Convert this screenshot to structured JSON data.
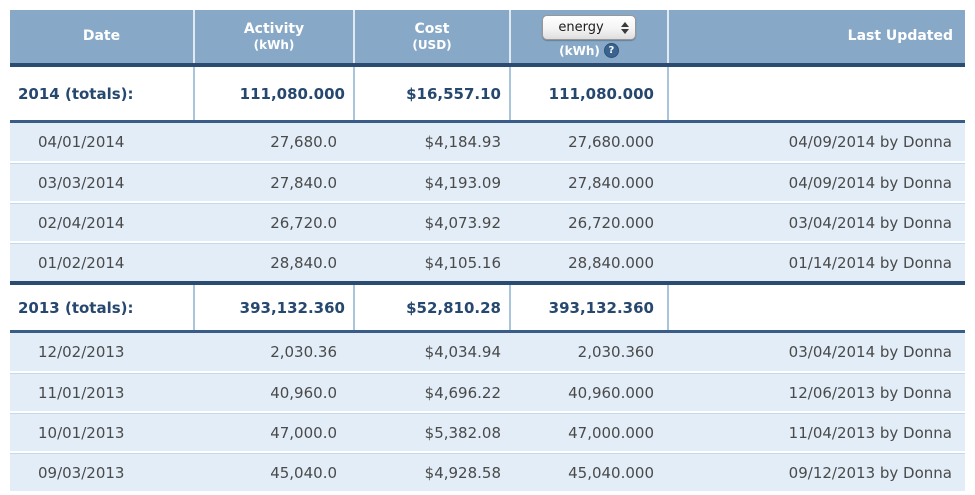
{
  "table": {
    "columns": {
      "date": {
        "label": "Date"
      },
      "activity": {
        "label": "Activity",
        "unit": "(kWh)"
      },
      "cost": {
        "label": "Cost",
        "unit": "(USD)"
      },
      "energy": {
        "select_value": "energy",
        "unit": "(kWh)",
        "help_glyph": "?"
      },
      "last_updated": {
        "label": "Last Updated"
      }
    },
    "sections": [
      {
        "total_label": "2014 (totals):",
        "total_activity": "111,080.000",
        "total_cost": "$16,557.10",
        "total_energy": "111,080.000",
        "rows": [
          {
            "date": "04/01/2014",
            "activity": "27,680.0",
            "cost": "$4,184.93",
            "energy": "27,680.000",
            "last_updated": "04/09/2014 by Donna"
          },
          {
            "date": "03/03/2014",
            "activity": "27,840.0",
            "cost": "$4,193.09",
            "energy": "27,840.000",
            "last_updated": "04/09/2014 by Donna"
          },
          {
            "date": "02/04/2014",
            "activity": "26,720.0",
            "cost": "$4,073.92",
            "energy": "26,720.000",
            "last_updated": "03/04/2014 by Donna"
          },
          {
            "date": "01/02/2014",
            "activity": "28,840.0",
            "cost": "$4,105.16",
            "energy": "28,840.000",
            "last_updated": "01/14/2014 by Donna"
          }
        ]
      },
      {
        "total_label": "2013 (totals):",
        "total_activity": "393,132.360",
        "total_cost": "$52,810.28",
        "total_energy": "393,132.360",
        "rows": [
          {
            "date": "12/02/2013",
            "activity": "2,030.36",
            "cost": "$4,034.94",
            "energy": "2,030.360",
            "last_updated": "03/04/2014 by Donna"
          },
          {
            "date": "11/01/2013",
            "activity": "40,960.0",
            "cost": "$4,696.22",
            "energy": "40,960.000",
            "last_updated": "12/06/2013 by Donna"
          },
          {
            "date": "10/01/2013",
            "activity": "47,000.0",
            "cost": "$5,382.08",
            "energy": "47,000.000",
            "last_updated": "11/04/2013 by Donna"
          },
          {
            "date": "09/03/2013",
            "activity": "45,040.0",
            "cost": "$4,928.58",
            "energy": "45,040.000",
            "last_updated": "09/12/2013 by Donna"
          }
        ]
      }
    ]
  },
  "colors": {
    "header_bg": "#87a9c7",
    "header_text": "#ffffff",
    "section_line": "#2c4b70",
    "totals_text": "#26486e",
    "totals_border": "#3a5d88",
    "row_bg": "#e2edf7",
    "row_separator": "#c5d9ec",
    "data_text": "#4a4a4a",
    "help_icon_bg": "#3a638f"
  }
}
